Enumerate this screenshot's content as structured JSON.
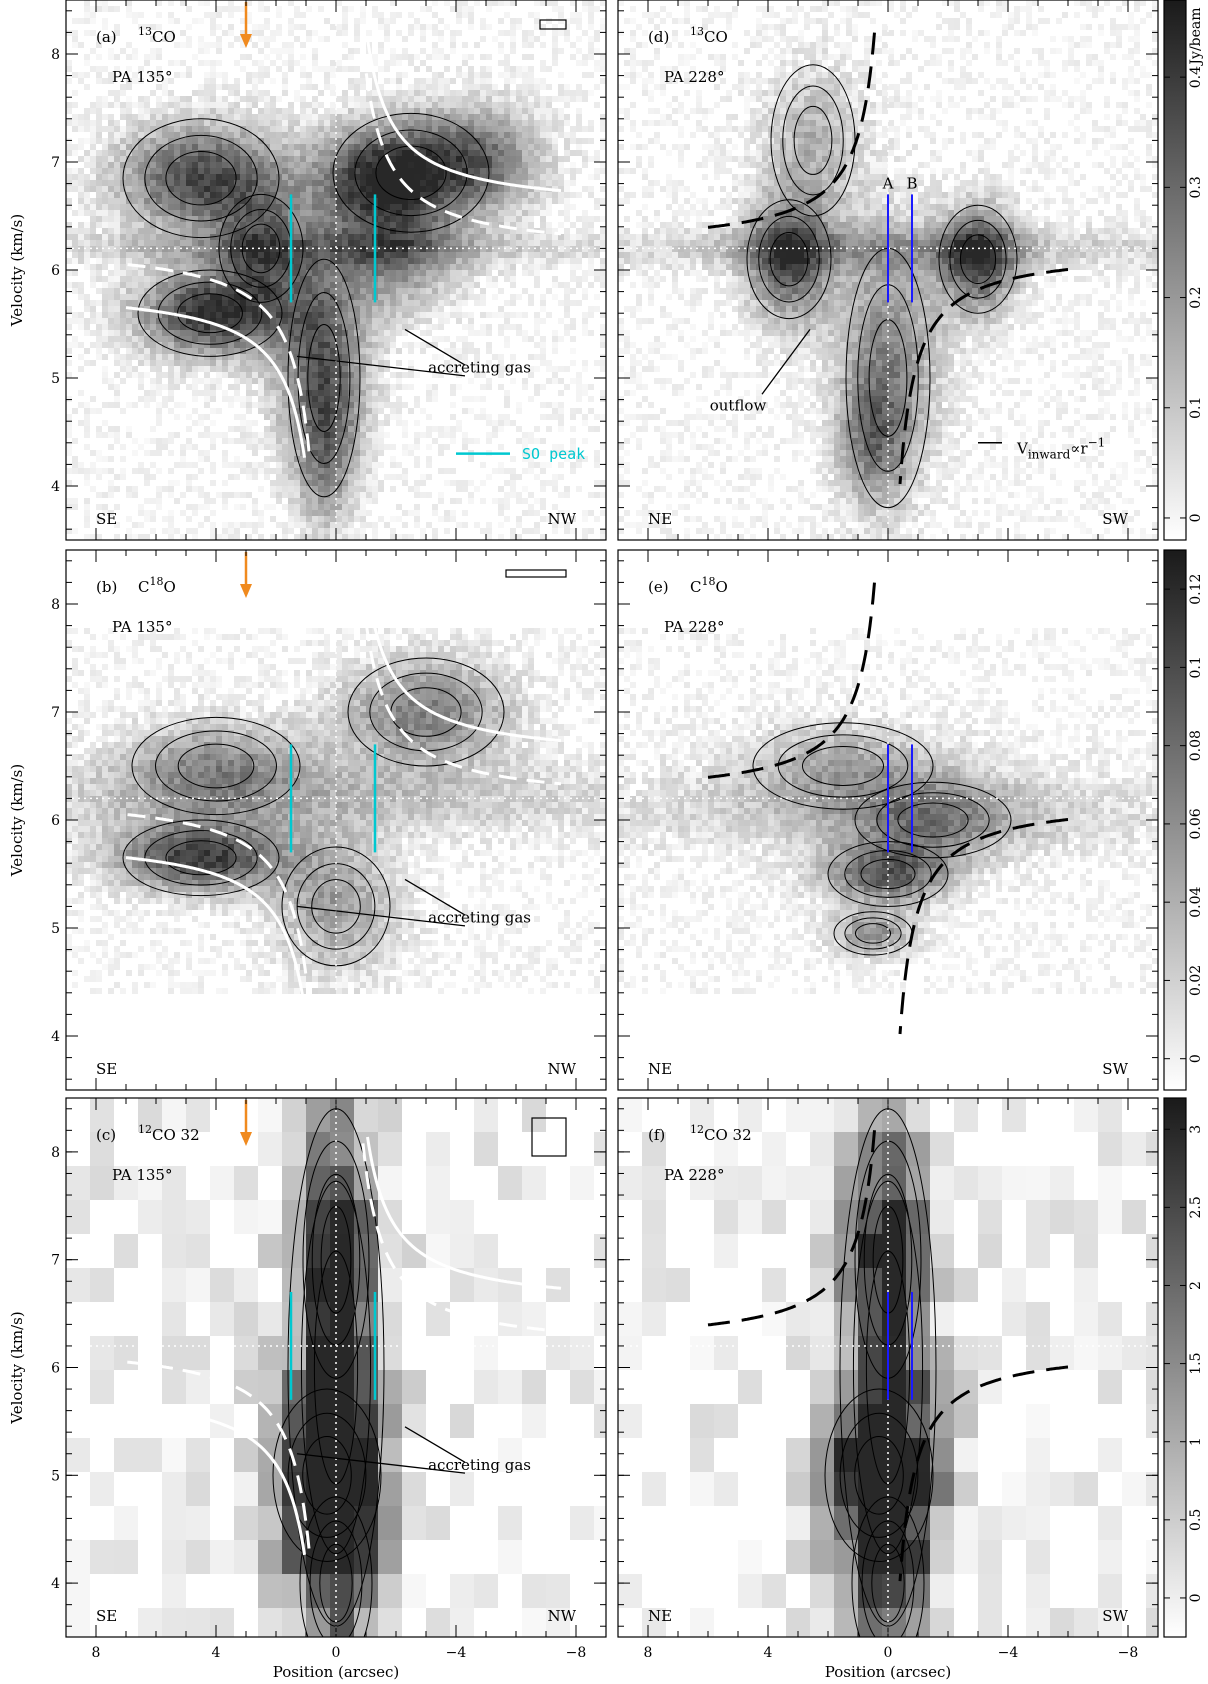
{
  "chart_data": {
    "type": "heatmap",
    "x_axis": {
      "title": "Position (arcsec)",
      "range": [
        9,
        -9
      ],
      "ticks": [
        "8",
        "4",
        "0",
        "−4",
        "−8"
      ],
      "tick_values": [
        8,
        4,
        0,
        -4,
        -8
      ]
    },
    "y_axis": {
      "title": "Velocity (km/s)",
      "range": [
        3.5,
        8.5
      ],
      "ticks": [
        "4",
        "5",
        "6",
        "7",
        "8"
      ],
      "tick_values": [
        4,
        5,
        6,
        7,
        8
      ]
    },
    "systemic_velocity": 6.2,
    "panels": [
      {
        "id": "a",
        "label": "(a)",
        "line": "13CO",
        "line_mass": "13",
        "line_name": "CO",
        "pa": "PA 135°",
        "left_dir": "SE",
        "right_dir": "NW",
        "accreting_label": "accreting gas",
        "has_so_marks": true,
        "has_arrow": true,
        "col": 0,
        "row": 0
      },
      {
        "id": "b",
        "label": "(b)",
        "line": "C18O",
        "line_prefix": "C",
        "line_mass": "18",
        "line_name": "O",
        "pa": "PA 135°",
        "left_dir": "SE",
        "right_dir": "NW",
        "accreting_label": "accreting gas",
        "has_so_marks": true,
        "has_arrow": true,
        "col": 0,
        "row": 1
      },
      {
        "id": "c",
        "label": "(c)",
        "line": "12CO 32",
        "line_mass": "12",
        "line_name": "CO 32",
        "pa": "PA 135°",
        "left_dir": "SE",
        "right_dir": "NW",
        "accreting_label": "accreting gas",
        "has_so_marks": true,
        "has_arrow": true,
        "col": 0,
        "row": 2
      },
      {
        "id": "d",
        "label": "(d)",
        "line": "13CO",
        "line_mass": "13",
        "line_name": "CO",
        "pa": "PA 228°",
        "left_dir": "NE",
        "right_dir": "SW",
        "outflow_label": "outflow",
        "slit_labels": [
          "A",
          "B"
        ],
        "col": 1,
        "row": 0
      },
      {
        "id": "e",
        "label": "(e)",
        "line": "C18O",
        "line_prefix": "C",
        "line_mass": "18",
        "line_name": "O",
        "pa": "PA 228°",
        "left_dir": "NE",
        "right_dir": "SW",
        "col": 1,
        "row": 1
      },
      {
        "id": "f",
        "label": "(f)",
        "line": "12CO 32",
        "line_mass": "12",
        "line_name": "CO 32",
        "pa": "PA 228°",
        "left_dir": "NE",
        "right_dir": "SW",
        "col": 1,
        "row": 2
      }
    ],
    "so_peak": {
      "label": "SO peak",
      "positions": [
        1.5,
        -1.3
      ],
      "v_range": [
        5.7,
        6.7
      ]
    },
    "slits": {
      "positions": [
        0,
        -0.8
      ],
      "v_range": [
        5.7,
        6.7
      ]
    },
    "legend_dashed": {
      "prefix": "V",
      "sub": "inward",
      "suffix": "∝r",
      "sup": "−1"
    },
    "colorbars": [
      {
        "unit": "Jy/beam",
        "min": -0.02,
        "max": 0.47,
        "ticks": [
          0,
          0.1,
          0.2,
          0.3,
          0.4
        ],
        "tick_labels": [
          "0",
          "0.1",
          "0.2",
          "0.3",
          "0.4"
        ]
      },
      {
        "unit": "",
        "min": -0.008,
        "max": 0.13,
        "ticks": [
          0,
          0.02,
          0.04,
          0.06,
          0.08,
          0.1,
          0.12
        ],
        "tick_labels": [
          "0",
          "0.02",
          "0.04",
          "0.06",
          "0.08",
          "0.1",
          "0.12"
        ]
      },
      {
        "unit": "",
        "min": -0.25,
        "max": 3.2,
        "ticks": [
          0,
          0.5,
          1,
          1.5,
          2,
          2.5,
          3
        ],
        "tick_labels": [
          "0",
          "0.5",
          "1",
          "1.5",
          "2",
          "2.5",
          "3"
        ]
      }
    ],
    "colors": {
      "so_peak": "#00c8d0",
      "slit": "#1a1aff",
      "arrow": "#f08a1e",
      "model_curve": "#ffffff",
      "infall_curve": "#000000"
    }
  }
}
